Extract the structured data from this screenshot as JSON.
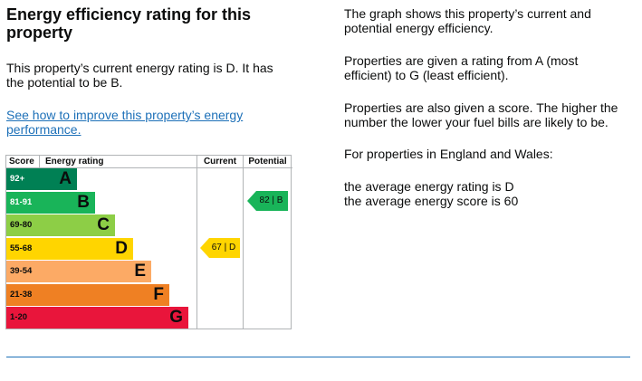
{
  "left": {
    "title": "Energy efficiency rating for this property",
    "current_text": "This property’s current energy rating is D. It has the potential to be B.",
    "link": "See how to improve this property’s energy performance."
  },
  "chart_data": {
    "type": "table",
    "headers": {
      "score": "Score",
      "rating": "Energy rating",
      "current": "Current",
      "potential": "Potential"
    },
    "bands": [
      {
        "range": "92+",
        "letter": "A",
        "color": "#008054"
      },
      {
        "range": "81-91",
        "letter": "B",
        "color": "#19b459"
      },
      {
        "range": "69-80",
        "letter": "C",
        "color": "#8dce46"
      },
      {
        "range": "55-68",
        "letter": "D",
        "color": "#ffd500"
      },
      {
        "range": "39-54",
        "letter": "E",
        "color": "#fcaa65"
      },
      {
        "range": "21-38",
        "letter": "F",
        "color": "#ef8023"
      },
      {
        "range": "1-20",
        "letter": "G",
        "color": "#e9153b"
      }
    ],
    "current": {
      "score": "67",
      "letter": "D",
      "label": "67 | D",
      "color": "#ffd500"
    },
    "potential": {
      "score": "82",
      "letter": "B",
      "label": "82 | B",
      "color": "#19b459"
    }
  },
  "right": {
    "p1": "The graph shows this property’s current and potential energy efficiency.",
    "p2": "Properties are given a rating from A (most efficient) to G (least efficient).",
    "p3": "Properties are also given a score. The higher the number the lower your fuel bills are likely to be.",
    "p4": "For properties in England and Wales:",
    "p5": "the average energy rating is D",
    "p6": "the average energy score is 60"
  }
}
